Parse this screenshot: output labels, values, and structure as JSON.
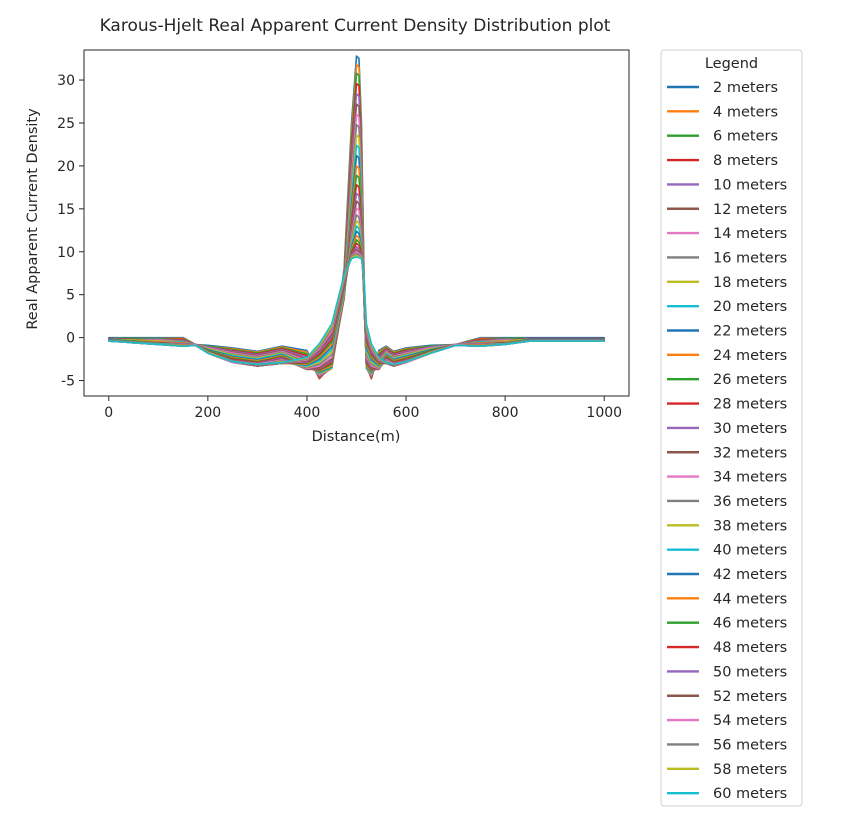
{
  "chart_data": {
    "type": "line",
    "title": "Karous-Hjelt Real Apparent Current Density Distribution plot",
    "xlabel": "Distance(m)",
    "ylabel": "Real Apparent Current Density",
    "xlim": [
      -50,
      1050
    ],
    "ylim": [
      -6.8,
      33.5
    ],
    "xticks": [
      0,
      200,
      400,
      600,
      800,
      1000
    ],
    "yticks": [
      -5,
      0,
      5,
      10,
      15,
      20,
      25,
      30
    ],
    "grid": false,
    "legend": {
      "title": "Legend",
      "placement": "outside-right"
    },
    "x": [
      0,
      50,
      100,
      150,
      175,
      200,
      250,
      300,
      350,
      400,
      425,
      450,
      475,
      490,
      500,
      505,
      510,
      515,
      520,
      530,
      545,
      560,
      575,
      600,
      650,
      700,
      750,
      800,
      825,
      850,
      900,
      950,
      1000
    ],
    "series": [
      {
        "name": "2 meters",
        "color": "#1f77b4",
        "values": [
          0.0,
          0.0,
          0.0,
          0.0,
          -0.8,
          -0.9,
          -1.2,
          -1.6,
          -1.0,
          -1.5,
          -4.8,
          -3.0,
          8.0,
          25.0,
          32.8,
          32.5,
          25.0,
          8.0,
          -3.0,
          -4.8,
          -1.5,
          -1.0,
          -1.6,
          -1.2,
          -0.9,
          -0.8,
          0.0,
          0.0,
          0.0,
          0.0,
          0.0,
          0.0,
          0.0
        ]
      },
      {
        "name": "4 meters",
        "color": "#ff7f0e",
        "values": [
          -0.1,
          -0.1,
          -0.1,
          -0.1,
          -0.8,
          -1.0,
          -1.3,
          -1.7,
          -1.1,
          -1.7,
          -4.8,
          -3.2,
          7.5,
          24.0,
          31.8,
          31.5,
          24.0,
          7.5,
          -3.2,
          -4.8,
          -1.7,
          -1.1,
          -1.7,
          -1.3,
          -1.0,
          -0.8,
          -0.1,
          -0.1,
          -0.1,
          -0.1,
          -0.1,
          -0.1,
          -0.1
        ]
      },
      {
        "name": "6 meters",
        "color": "#2ca02c",
        "values": [
          -0.1,
          -0.1,
          -0.1,
          -0.2,
          -0.8,
          -1.0,
          -1.4,
          -1.8,
          -1.2,
          -1.9,
          -4.7,
          -3.3,
          7.0,
          23.0,
          30.8,
          30.5,
          23.0,
          7.0,
          -3.3,
          -4.7,
          -1.9,
          -1.2,
          -1.8,
          -1.4,
          -1.0,
          -0.8,
          -0.2,
          -0.1,
          -0.1,
          -0.1,
          -0.1,
          -0.1,
          -0.1
        ]
      },
      {
        "name": "8 meters",
        "color": "#d62728",
        "values": [
          -0.1,
          -0.2,
          -0.2,
          -0.2,
          -0.8,
          -1.1,
          -1.5,
          -1.9,
          -1.3,
          -2.1,
          -4.7,
          -3.4,
          6.6,
          22.0,
          29.6,
          29.3,
          22.0,
          6.6,
          -3.4,
          -4.7,
          -2.1,
          -1.3,
          -1.9,
          -1.5,
          -1.1,
          -0.8,
          -0.2,
          -0.2,
          -0.2,
          -0.1,
          -0.1,
          -0.1,
          -0.1
        ]
      },
      {
        "name": "10 meters",
        "color": "#9467bd",
        "values": [
          -0.1,
          -0.2,
          -0.2,
          -0.3,
          -0.8,
          -1.1,
          -1.6,
          -2.0,
          -1.4,
          -2.3,
          -4.6,
          -3.5,
          6.2,
          21.0,
          28.4,
          28.1,
          21.0,
          6.2,
          -3.5,
          -4.6,
          -2.3,
          -1.4,
          -2.0,
          -1.6,
          -1.1,
          -0.8,
          -0.3,
          -0.2,
          -0.2,
          -0.1,
          -0.1,
          -0.1,
          -0.1
        ]
      },
      {
        "name": "12 meters",
        "color": "#8c564b",
        "values": [
          -0.1,
          -0.2,
          -0.3,
          -0.3,
          -0.8,
          -1.2,
          -1.7,
          -2.1,
          -1.5,
          -2.5,
          -4.5,
          -3.6,
          5.9,
          20.0,
          27.2,
          26.9,
          20.0,
          5.9,
          -3.6,
          -4.5,
          -2.5,
          -1.5,
          -2.1,
          -1.7,
          -1.2,
          -0.8,
          -0.3,
          -0.3,
          -0.2,
          -0.1,
          -0.1,
          -0.1,
          -0.1
        ]
      },
      {
        "name": "14 meters",
        "color": "#e377c2",
        "values": [
          -0.2,
          -0.3,
          -0.3,
          -0.4,
          -0.8,
          -1.2,
          -1.8,
          -2.2,
          -1.6,
          -2.7,
          -4.4,
          -3.6,
          5.6,
          19.0,
          26.0,
          25.7,
          19.0,
          5.6,
          -3.6,
          -4.4,
          -2.7,
          -1.6,
          -2.2,
          -1.8,
          -1.2,
          -0.8,
          -0.4,
          -0.3,
          -0.3,
          -0.2,
          -0.2,
          -0.2,
          -0.2
        ]
      },
      {
        "name": "16 meters",
        "color": "#7f7f7f",
        "values": [
          -0.2,
          -0.3,
          -0.4,
          -0.4,
          -0.8,
          -1.3,
          -1.9,
          -2.3,
          -1.7,
          -2.9,
          -4.3,
          -3.6,
          5.3,
          18.0,
          24.8,
          24.5,
          18.0,
          5.3,
          -3.6,
          -4.3,
          -2.9,
          -1.7,
          -2.3,
          -1.9,
          -1.3,
          -0.8,
          -0.4,
          -0.4,
          -0.3,
          -0.2,
          -0.2,
          -0.2,
          -0.2
        ]
      },
      {
        "name": "18 meters",
        "color": "#bcbd22",
        "values": [
          -0.2,
          -0.3,
          -0.4,
          -0.5,
          -0.8,
          -1.3,
          -2.0,
          -2.4,
          -1.8,
          -3.1,
          -4.2,
          -3.6,
          5.0,
          17.1,
          23.6,
          23.3,
          17.1,
          5.0,
          -3.6,
          -4.2,
          -3.1,
          -1.8,
          -2.4,
          -2.0,
          -1.3,
          -0.8,
          -0.5,
          -0.4,
          -0.3,
          -0.2,
          -0.2,
          -0.2,
          -0.2
        ]
      },
      {
        "name": "20 meters",
        "color": "#17becf",
        "values": [
          -0.2,
          -0.4,
          -0.5,
          -0.5,
          -0.8,
          -1.4,
          -2.1,
          -2.5,
          -1.9,
          -3.3,
          -4.1,
          -3.5,
          4.8,
          16.2,
          22.4,
          22.1,
          16.2,
          4.8,
          -3.5,
          -4.1,
          -3.3,
          -1.9,
          -2.5,
          -2.1,
          -1.4,
          -0.8,
          -0.5,
          -0.5,
          -0.4,
          -0.2,
          -0.2,
          -0.2,
          -0.2
        ]
      },
      {
        "name": "22 meters",
        "color": "#1f77b4",
        "values": [
          -0.2,
          -0.4,
          -0.5,
          -0.6,
          -0.8,
          -1.4,
          -2.2,
          -2.6,
          -2.0,
          -3.4,
          -4.0,
          -3.4,
          4.7,
          15.4,
          21.2,
          20.9,
          15.4,
          4.7,
          -3.4,
          -4.0,
          -3.4,
          -2.0,
          -2.6,
          -2.2,
          -1.4,
          -0.8,
          -0.6,
          -0.5,
          -0.4,
          -0.2,
          -0.2,
          -0.2,
          -0.2
        ]
      },
      {
        "name": "24 meters",
        "color": "#ff7f0e",
        "values": [
          -0.3,
          -0.4,
          -0.5,
          -0.6,
          -0.8,
          -1.5,
          -2.3,
          -2.7,
          -2.1,
          -3.5,
          -3.9,
          -3.3,
          4.6,
          14.7,
          20.0,
          19.7,
          14.7,
          4.6,
          -3.3,
          -3.9,
          -3.5,
          -2.1,
          -2.7,
          -2.3,
          -1.5,
          -0.8,
          -0.6,
          -0.5,
          -0.4,
          -0.3,
          -0.3,
          -0.3,
          -0.3
        ]
      },
      {
        "name": "26 meters",
        "color": "#2ca02c",
        "values": [
          -0.3,
          -0.4,
          -0.6,
          -0.7,
          -0.8,
          -1.5,
          -2.4,
          -2.8,
          -2.2,
          -3.6,
          -3.8,
          -3.1,
          4.6,
          14.0,
          18.9,
          18.6,
          14.0,
          4.6,
          -3.1,
          -3.8,
          -3.6,
          -2.2,
          -2.8,
          -2.4,
          -1.5,
          -0.8,
          -0.7,
          -0.6,
          -0.4,
          -0.3,
          -0.3,
          -0.3,
          -0.3
        ]
      },
      {
        "name": "28 meters",
        "color": "#d62728",
        "values": [
          -0.3,
          -0.5,
          -0.6,
          -0.7,
          -0.8,
          -1.6,
          -2.5,
          -2.9,
          -2.3,
          -3.7,
          -3.7,
          -2.9,
          4.6,
          13.4,
          17.8,
          17.5,
          13.4,
          4.6,
          -2.9,
          -3.7,
          -3.7,
          -2.3,
          -2.9,
          -2.5,
          -1.6,
          -0.8,
          -0.7,
          -0.6,
          -0.5,
          -0.3,
          -0.3,
          -0.3,
          -0.3
        ]
      },
      {
        "name": "30 meters",
        "color": "#9467bd",
        "values": [
          -0.3,
          -0.5,
          -0.6,
          -0.7,
          -0.8,
          -1.6,
          -2.6,
          -3.0,
          -2.4,
          -3.7,
          -3.6,
          -2.7,
          4.7,
          12.8,
          16.8,
          16.5,
          12.8,
          4.7,
          -2.7,
          -3.6,
          -3.7,
          -2.4,
          -3.0,
          -2.6,
          -1.6,
          -0.8,
          -0.7,
          -0.6,
          -0.5,
          -0.3,
          -0.3,
          -0.3,
          -0.3
        ]
      },
      {
        "name": "32 meters",
        "color": "#8c564b",
        "values": [
          -0.3,
          -0.5,
          -0.6,
          -0.8,
          -0.8,
          -1.6,
          -2.6,
          -3.1,
          -2.5,
          -3.7,
          -3.5,
          -2.5,
          4.8,
          12.3,
          15.9,
          15.6,
          12.3,
          4.8,
          -2.5,
          -3.5,
          -3.7,
          -2.5,
          -3.1,
          -2.6,
          -1.6,
          -0.8,
          -0.8,
          -0.6,
          -0.5,
          -0.3,
          -0.3,
          -0.3,
          -0.3
        ]
      },
      {
        "name": "34 meters",
        "color": "#e377c2",
        "values": [
          -0.3,
          -0.5,
          -0.7,
          -0.8,
          -0.8,
          -1.7,
          -2.7,
          -3.1,
          -2.6,
          -3.6,
          -3.3,
          -2.3,
          4.9,
          11.9,
          15.1,
          14.8,
          11.9,
          4.9,
          -2.3,
          -3.3,
          -3.6,
          -2.6,
          -3.1,
          -2.7,
          -1.7,
          -0.8,
          -0.8,
          -0.7,
          -0.5,
          -0.3,
          -0.3,
          -0.3,
          -0.3
        ]
      },
      {
        "name": "36 meters",
        "color": "#7f7f7f",
        "values": [
          -0.3,
          -0.5,
          -0.7,
          -0.8,
          -0.9,
          -1.7,
          -2.7,
          -3.2,
          -2.7,
          -3.5,
          -3.1,
          -2.0,
          5.0,
          11.5,
          14.3,
          14.0,
          11.5,
          5.0,
          -2.0,
          -3.1,
          -3.5,
          -2.7,
          -3.2,
          -2.7,
          -1.7,
          -0.9,
          -0.8,
          -0.7,
          -0.5,
          -0.3,
          -0.3,
          -0.3,
          -0.3
        ]
      },
      {
        "name": "38 meters",
        "color": "#bcbd22",
        "values": [
          -0.4,
          -0.6,
          -0.7,
          -0.9,
          -0.9,
          -1.7,
          -2.8,
          -3.2,
          -2.8,
          -3.4,
          -2.9,
          -1.7,
          5.1,
          11.1,
          13.6,
          13.3,
          11.1,
          5.1,
          -1.7,
          -2.9,
          -3.4,
          -2.8,
          -3.2,
          -2.8,
          -1.7,
          -0.9,
          -0.9,
          -0.7,
          -0.6,
          -0.4,
          -0.4,
          -0.4,
          -0.4
        ]
      },
      {
        "name": "40 meters",
        "color": "#17becf",
        "values": [
          -0.4,
          -0.6,
          -0.7,
          -0.9,
          -0.9,
          -1.8,
          -2.8,
          -3.3,
          -2.9,
          -3.3,
          -2.7,
          -1.4,
          5.3,
          10.8,
          13.0,
          12.7,
          10.8,
          5.3,
          -1.4,
          -2.7,
          -3.3,
          -2.9,
          -3.3,
          -2.8,
          -1.8,
          -0.9,
          -0.9,
          -0.7,
          -0.6,
          -0.4,
          -0.4,
          -0.4,
          -0.4
        ]
      },
      {
        "name": "42 meters",
        "color": "#1f77b4",
        "values": [
          -0.4,
          -0.6,
          -0.8,
          -0.9,
          -0.9,
          -1.8,
          -2.9,
          -3.3,
          -2.9,
          -3.2,
          -2.5,
          -1.1,
          5.5,
          10.5,
          12.4,
          12.1,
          10.5,
          5.5,
          -1.1,
          -2.5,
          -3.2,
          -2.9,
          -3.3,
          -2.9,
          -1.8,
          -0.9,
          -0.9,
          -0.8,
          -0.6,
          -0.4,
          -0.4,
          -0.4,
          -0.4
        ]
      },
      {
        "name": "44 meters",
        "color": "#ff7f0e",
        "values": [
          -0.4,
          -0.6,
          -0.8,
          -0.9,
          -0.9,
          -1.8,
          -2.9,
          -3.3,
          -3.0,
          -3.1,
          -2.3,
          -0.8,
          5.7,
          10.3,
          11.9,
          11.6,
          10.3,
          5.7,
          -0.8,
          -2.3,
          -3.1,
          -3.0,
          -3.3,
          -2.9,
          -1.8,
          -0.9,
          -0.9,
          -0.8,
          -0.6,
          -0.4,
          -0.4,
          -0.4,
          -0.4
        ]
      },
      {
        "name": "46 meters",
        "color": "#2ca02c",
        "values": [
          -0.4,
          -0.6,
          -0.8,
          -1.0,
          -0.9,
          -1.8,
          -2.9,
          -3.3,
          -3.0,
          -3.0,
          -2.1,
          -0.5,
          5.9,
          10.1,
          11.4,
          11.1,
          10.1,
          5.9,
          -0.5,
          -2.1,
          -3.0,
          -3.0,
          -3.3,
          -2.9,
          -1.8,
          -0.9,
          -1.0,
          -0.8,
          -0.6,
          -0.4,
          -0.4,
          -0.4,
          -0.4
        ]
      },
      {
        "name": "48 meters",
        "color": "#d62728",
        "values": [
          -0.4,
          -0.6,
          -0.8,
          -1.0,
          -0.9,
          -1.8,
          -2.9,
          -3.3,
          -3.0,
          -2.9,
          -1.9,
          -0.2,
          6.1,
          9.9,
          11.0,
          10.7,
          9.9,
          6.1,
          -0.2,
          -1.9,
          -2.9,
          -3.0,
          -3.3,
          -2.9,
          -1.8,
          -0.9,
          -1.0,
          -0.8,
          -0.6,
          -0.4,
          -0.4,
          -0.4,
          -0.4
        ]
      },
      {
        "name": "50 meters",
        "color": "#9467bd",
        "values": [
          -0.4,
          -0.6,
          -0.8,
          -1.0,
          -0.9,
          -1.8,
          -2.9,
          -3.3,
          -3.0,
          -2.8,
          -1.7,
          0.1,
          6.3,
          9.7,
          10.6,
          10.3,
          9.7,
          6.3,
          0.1,
          -1.7,
          -2.8,
          -3.0,
          -3.3,
          -2.9,
          -1.8,
          -0.9,
          -1.0,
          -0.8,
          -0.6,
          -0.4,
          -0.4,
          -0.4,
          -0.4
        ]
      },
      {
        "name": "52 meters",
        "color": "#8c564b",
        "values": [
          -0.4,
          -0.6,
          -0.8,
          -1.0,
          -0.9,
          -1.8,
          -2.9,
          -3.3,
          -3.0,
          -2.7,
          -1.5,
          0.4,
          6.5,
          9.6,
          10.3,
          10.0,
          9.6,
          6.5,
          0.4,
          -1.5,
          -2.7,
          -3.0,
          -3.3,
          -2.9,
          -1.8,
          -0.9,
          -1.0,
          -0.8,
          -0.6,
          -0.4,
          -0.4,
          -0.4,
          -0.4
        ]
      },
      {
        "name": "54 meters",
        "color": "#e377c2",
        "values": [
          -0.4,
          -0.6,
          -0.8,
          -1.0,
          -0.9,
          -1.8,
          -2.9,
          -3.2,
          -3.0,
          -2.6,
          -1.3,
          0.7,
          6.7,
          9.5,
          10.0,
          9.8,
          9.5,
          6.7,
          0.7,
          -1.3,
          -2.6,
          -3.0,
          -3.2,
          -2.9,
          -1.8,
          -0.9,
          -1.0,
          -0.8,
          -0.6,
          -0.4,
          -0.4,
          -0.4,
          -0.4
        ]
      },
      {
        "name": "56 meters",
        "color": "#7f7f7f",
        "values": [
          -0.4,
          -0.6,
          -0.8,
          -1.0,
          -0.9,
          -1.8,
          -2.8,
          -3.2,
          -3.0,
          -2.5,
          -1.1,
          1.0,
          6.9,
          9.4,
          9.8,
          9.6,
          9.4,
          6.9,
          1.0,
          -1.1,
          -2.5,
          -3.0,
          -3.2,
          -2.8,
          -1.8,
          -0.9,
          -1.0,
          -0.8,
          -0.6,
          -0.4,
          -0.4,
          -0.4,
          -0.4
        ]
      },
      {
        "name": "58 meters",
        "color": "#bcbd22",
        "values": [
          -0.4,
          -0.6,
          -0.8,
          -1.0,
          -0.9,
          -1.8,
          -2.8,
          -3.1,
          -2.9,
          -2.4,
          -0.9,
          1.3,
          7.1,
          9.3,
          9.6,
          9.4,
          9.3,
          7.1,
          1.3,
          -0.9,
          -2.4,
          -2.9,
          -3.1,
          -2.8,
          -1.8,
          -0.9,
          -1.0,
          -0.8,
          -0.6,
          -0.4,
          -0.4,
          -0.4,
          -0.4
        ]
      },
      {
        "name": "60 meters",
        "color": "#17becf",
        "values": [
          -0.4,
          -0.6,
          -0.8,
          -1.0,
          -0.9,
          -1.8,
          -2.8,
          -3.1,
          -2.9,
          -2.3,
          -0.7,
          1.6,
          7.3,
          9.2,
          9.4,
          9.3,
          9.2,
          7.3,
          1.6,
          -0.7,
          -2.3,
          -2.9,
          -3.1,
          -2.8,
          -1.8,
          -0.9,
          -1.0,
          -0.8,
          -0.6,
          -0.4,
          -0.4,
          -0.4,
          -0.4
        ]
      }
    ]
  }
}
